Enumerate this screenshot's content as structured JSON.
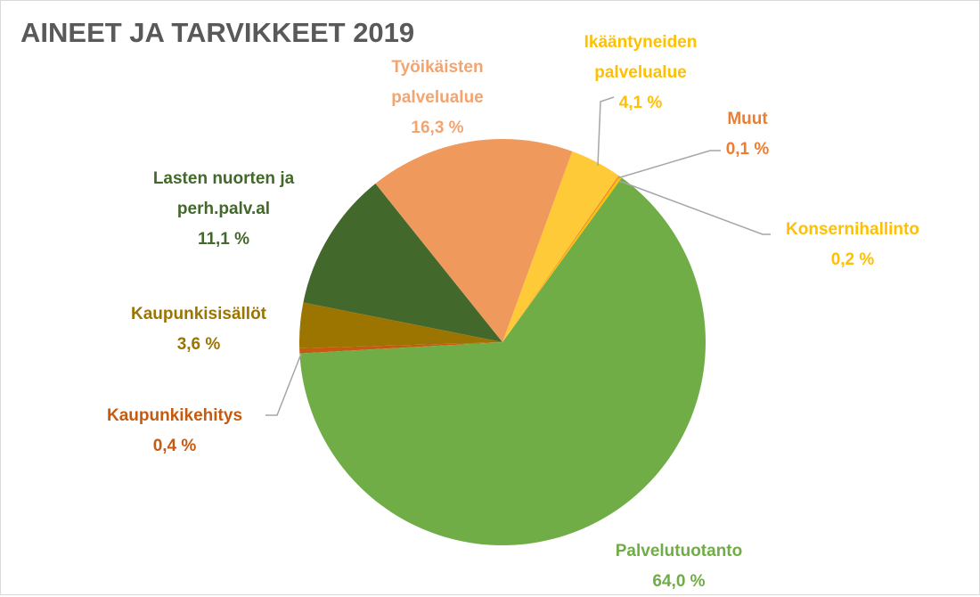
{
  "chart_data": {
    "type": "pie",
    "title": "AINEET JA TARVIKKEET 2019",
    "categories": [
      "Työikäisten palvelualue",
      "Ikääntyneiden palvelualue",
      "Muut",
      "Konsernihallinto",
      "Palvelutuotanto",
      "Kaupunkikehitys",
      "Kaupunkisisällöt",
      "Lasten nuorten ja perh.palv.al"
    ],
    "values": [
      16.3,
      4.1,
      0.1,
      0.2,
      64.0,
      0.4,
      3.6,
      11.1
    ],
    "value_labels": [
      "16,3 %",
      "4,1 %",
      "0,1 %",
      "0,2 %",
      "64,0 %",
      "0,4 %",
      "3,6 %",
      "11,1 %"
    ],
    "colors": [
      "#f0995c",
      "#ffca38",
      "#ed7d31",
      "#ffc000",
      "#70ad47",
      "#c55a11",
      "#9c7500",
      "#43682b"
    ]
  }
}
